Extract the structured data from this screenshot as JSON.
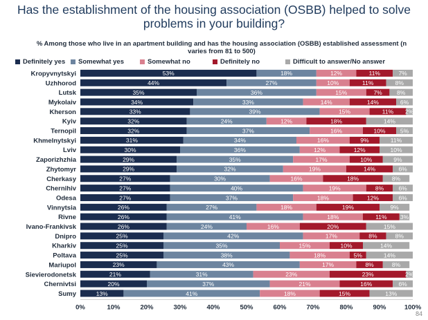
{
  "page": {
    "number": "84"
  },
  "chart_data": {
    "type": "bar",
    "orientation": "horizontal",
    "stacked": true,
    "title": "Has the establishment of the housing association (OSBB) helped to solve problems in your building?",
    "subtitle": "% Among those who live in an apartment building and has the housing association (OSBB) established assessment (n varies from 81 to 500)",
    "categories": [
      "Kropyvnytskyi",
      "Uzhhorod",
      "Lutsk",
      "Mykolaiv",
      "Kherson",
      "Kyiv",
      "Ternopil",
      "Khmelnytskyi",
      "Lviv",
      "Zaporizhzhia",
      "Zhytomyr",
      "Cherkasy",
      "Chernihiv",
      "Odesa",
      "Vinnytsia",
      "Rivne",
      "Ivano-Frankivsk",
      "Dnipro",
      "Kharkiv",
      "Poltava",
      "Mariupol",
      "Sievierodonetsk",
      "Chernivtsi",
      "Sumy"
    ],
    "series": [
      {
        "name": "Definitely yes",
        "color": "#1b2d4f",
        "values": [
          53,
          44,
          35,
          34,
          33,
          32,
          32,
          31,
          30,
          29,
          29,
          27,
          27,
          27,
          26,
          26,
          26,
          25,
          25,
          25,
          23,
          21,
          20,
          13
        ]
      },
      {
        "name": "Somewhat yes",
        "color": "#6d85a0",
        "values": [
          18,
          27,
          36,
          33,
          39,
          24,
          37,
          34,
          36,
          35,
          32,
          30,
          40,
          37,
          27,
          41,
          24,
          42,
          35,
          38,
          43,
          31,
          37,
          41
        ]
      },
      {
        "name": "Somewhat no",
        "color": "#d9808f",
        "values": [
          12,
          10,
          15,
          14,
          15,
          12,
          16,
          16,
          12,
          17,
          19,
          16,
          19,
          18,
          18,
          18,
          16,
          17,
          15,
          18,
          17,
          23,
          21,
          18
        ]
      },
      {
        "name": "Definitely no",
        "color": "#a3192b",
        "values": [
          11,
          11,
          7,
          14,
          11,
          18,
          10,
          9,
          12,
          10,
          14,
          18,
          8,
          12,
          19,
          11,
          20,
          8,
          10,
          5,
          8,
          23,
          16,
          15
        ]
      },
      {
        "name": "Difficult to answer/No answer",
        "color": "#a9a9a9",
        "values": [
          7,
          8,
          8,
          6,
          2,
          14,
          5,
          11,
          10,
          9,
          6,
          8,
          6,
          6,
          9,
          3,
          15,
          8,
          14,
          14,
          8,
          2,
          6,
          13
        ]
      }
    ],
    "value_labels": [
      [
        "53%",
        "18%",
        "12%",
        "11%",
        "7%"
      ],
      [
        "44%",
        "27%",
        "10%",
        "11%",
        "8%"
      ],
      [
        "35%",
        "36%",
        "15%",
        "7%",
        "8%"
      ],
      [
        "34%",
        "33%",
        "14%",
        "14%",
        "6%"
      ],
      [
        "33%",
        "39%",
        "15%",
        "11%",
        "2%"
      ],
      [
        "32%",
        "24%",
        "12%",
        "18%",
        "14%"
      ],
      [
        "32%",
        "37%",
        "16%",
        "10%",
        "5%"
      ],
      [
        "31%",
        "34%",
        "16%",
        "9%",
        "11%"
      ],
      [
        "30%",
        "36%",
        "12%",
        "12%",
        "10%"
      ],
      [
        "29%",
        "35%",
        "17%",
        "10%",
        "9%"
      ],
      [
        "29%",
        "32%",
        "19%",
        "14%",
        "6%"
      ],
      [
        "27%",
        "30%",
        "16%",
        "18%",
        "8%"
      ],
      [
        "27%",
        "40%",
        "19%",
        "8%",
        "6%"
      ],
      [
        "27%",
        "37%",
        "18%",
        "12%",
        "6%"
      ],
      [
        "26%",
        "27%",
        "18%",
        "19%",
        "9%"
      ],
      [
        "26%",
        "41%",
        "18%",
        "11%",
        "3%"
      ],
      [
        "26%",
        "24%",
        "16%",
        "20%",
        "15%"
      ],
      [
        "25%",
        "42%",
        "17%",
        "8%",
        "8%"
      ],
      [
        "25%",
        "35%",
        "15%",
        "10%",
        "14%"
      ],
      [
        "25%",
        "38%",
        "18%",
        "5%",
        "14%"
      ],
      [
        "23%",
        "43%",
        "17%",
        "8%",
        "8%"
      ],
      [
        "21%",
        "31%",
        "23%",
        "23%",
        "2%"
      ],
      [
        "20%",
        "37%",
        "21%",
        "16%",
        "6%"
      ],
      [
        "13%",
        "41%",
        "18%",
        "15%",
        "13%"
      ]
    ],
    "xlim": [
      0,
      100
    ],
    "xticks": [
      "0%",
      "10%",
      "20%",
      "30%",
      "40%",
      "50%",
      "60%",
      "70%",
      "80%",
      "90%",
      "100%"
    ],
    "legend_position": "top",
    "grid": false
  }
}
